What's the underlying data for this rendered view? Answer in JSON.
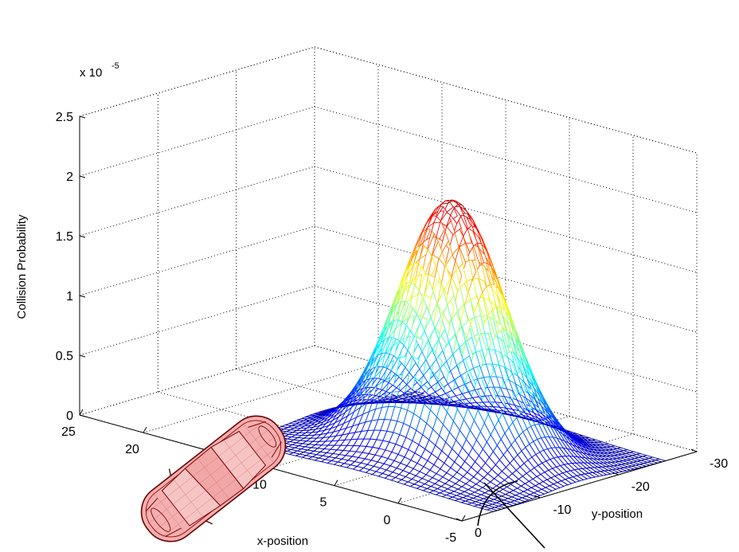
{
  "chart_data": {
    "type": "surface",
    "title": "",
    "xlabel": "x-position",
    "ylabel": "y-position",
    "zlabel": "Collision Probability",
    "z_exponent_label": "x 10",
    "z_exponent_power": "-5",
    "xlim": [
      -5,
      25
    ],
    "ylim": [
      -30,
      0
    ],
    "zlim": [
      0,
      2.5
    ],
    "x_ticks": [
      "25",
      "20",
      "15",
      "10",
      "5",
      "0",
      "-5"
    ],
    "x_tick_values": [
      25,
      20,
      15,
      10,
      5,
      0,
      -5
    ],
    "y_ticks": [
      "0",
      "-10",
      "-20",
      "-30"
    ],
    "y_tick_values": [
      0,
      -10,
      -20,
      -30
    ],
    "z_ticks": [
      "0",
      "0.5",
      "1",
      "1.5",
      "2",
      "2.5"
    ],
    "z_tick_values": [
      0,
      0.5,
      1,
      1.5,
      2,
      2.5
    ],
    "grid": true,
    "colormap": "jet",
    "surface_extent": {
      "x": [
        -5,
        15
      ],
      "y": [
        -26,
        -4
      ]
    },
    "peak": {
      "x": 5,
      "y": -15,
      "z": 2.1
    },
    "surface_profile": {
      "description": "mesh surface rising from ~0 to a ridge peaking near 2.1e-5",
      "peak_value": 2.1
    }
  }
}
